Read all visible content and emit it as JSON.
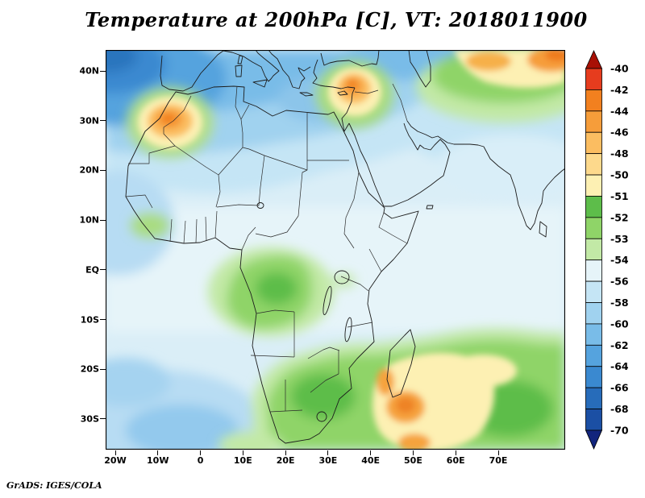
{
  "title": "Temperature at 200hPa [C], VT: 2018011900",
  "credit": "GrADS: IGES/COLA",
  "axes": {
    "x_ticks": [
      "20W",
      "10W",
      "0",
      "10E",
      "20E",
      "30E",
      "40E",
      "50E",
      "60E",
      "70E"
    ],
    "y_ticks": [
      "40N",
      "30N",
      "20N",
      "10N",
      "EQ",
      "10S",
      "20S",
      "30S"
    ]
  },
  "colorbar": {
    "levels": [
      -40,
      -42,
      -44,
      -46,
      -48,
      -50,
      -51,
      -52,
      -53,
      -54,
      -56,
      -58,
      -60,
      -62,
      -64,
      -66,
      -68,
      -70
    ],
    "cell_colors": [
      "#e63c1e",
      "#f2801f",
      "#f69d3a",
      "#fbbd61",
      "#fdd98c",
      "#fdf0b3",
      "#5dbd4a",
      "#8fd468",
      "#c2e9a6",
      "#e6f4f9",
      "#c5e5f5",
      "#a0d2ef",
      "#79bce8",
      "#55a3de",
      "#3a89d0",
      "#276cba",
      "#1b4fa4"
    ],
    "over_color": "#a81005",
    "under_color": "#12257d"
  },
  "chart_data": {
    "type": "heatmap",
    "title": "Temperature at 200hPa [C], VT: 2018011900",
    "variable": "Temperature",
    "level": "200hPa",
    "units": "C",
    "valid_time": "2018011900",
    "x_axis": {
      "tick_labels": [
        "20W",
        "10W",
        "0",
        "10E",
        "20E",
        "30E",
        "40E",
        "50E",
        "60E",
        "70E"
      ],
      "approx_lon_range": [
        -22,
        85
      ]
    },
    "y_axis": {
      "tick_labels": [
        "40N",
        "30N",
        "20N",
        "10N",
        "EQ",
        "10S",
        "20S",
        "30S"
      ],
      "approx_lat_range": [
        -36,
        44
      ]
    },
    "contour_levels_c": [
      -40,
      -42,
      -44,
      -46,
      -48,
      -50,
      -51,
      -52,
      -53,
      -54,
      -56,
      -58,
      -60,
      -62,
      -64,
      -66,
      -68,
      -70
    ],
    "legend_position": "right",
    "grid": false,
    "estimated_features": [
      {
        "region": "northwest Atlantic corner (35-44N, 15-22W)",
        "approx_value_c": -62
      },
      {
        "region": "Mediterranean / North Africa blue band (22-40N)",
        "approx_value_c": -57
      },
      {
        "region": "Morocco warm core (~31N 8W)",
        "approx_value_c": -44
      },
      {
        "region": "Levant / eastern Mediterranean warm core (~34N 36E)",
        "approx_value_c": -44
      },
      {
        "region": "northeast corner warm band (~43N 55-80E)",
        "approx_value_c": -44
      },
      {
        "region": "tropical belt background (15N-15S)",
        "approx_value_c": -55
      },
      {
        "region": "Congo basin green pool (~4S 20E)",
        "approx_value_c": -52
      },
      {
        "region": "subtropical South Indian Ocean green belt (15-35S, 20-80E)",
        "approx_value_c": -52
      },
      {
        "region": "Madagascar / SW Indian Ocean warm core (~27S 48E)",
        "approx_value_c": -46
      },
      {
        "region": "South Atlantic southwest corner (25-35S, 20W-5E)",
        "approx_value_c": -57
      }
    ]
  }
}
